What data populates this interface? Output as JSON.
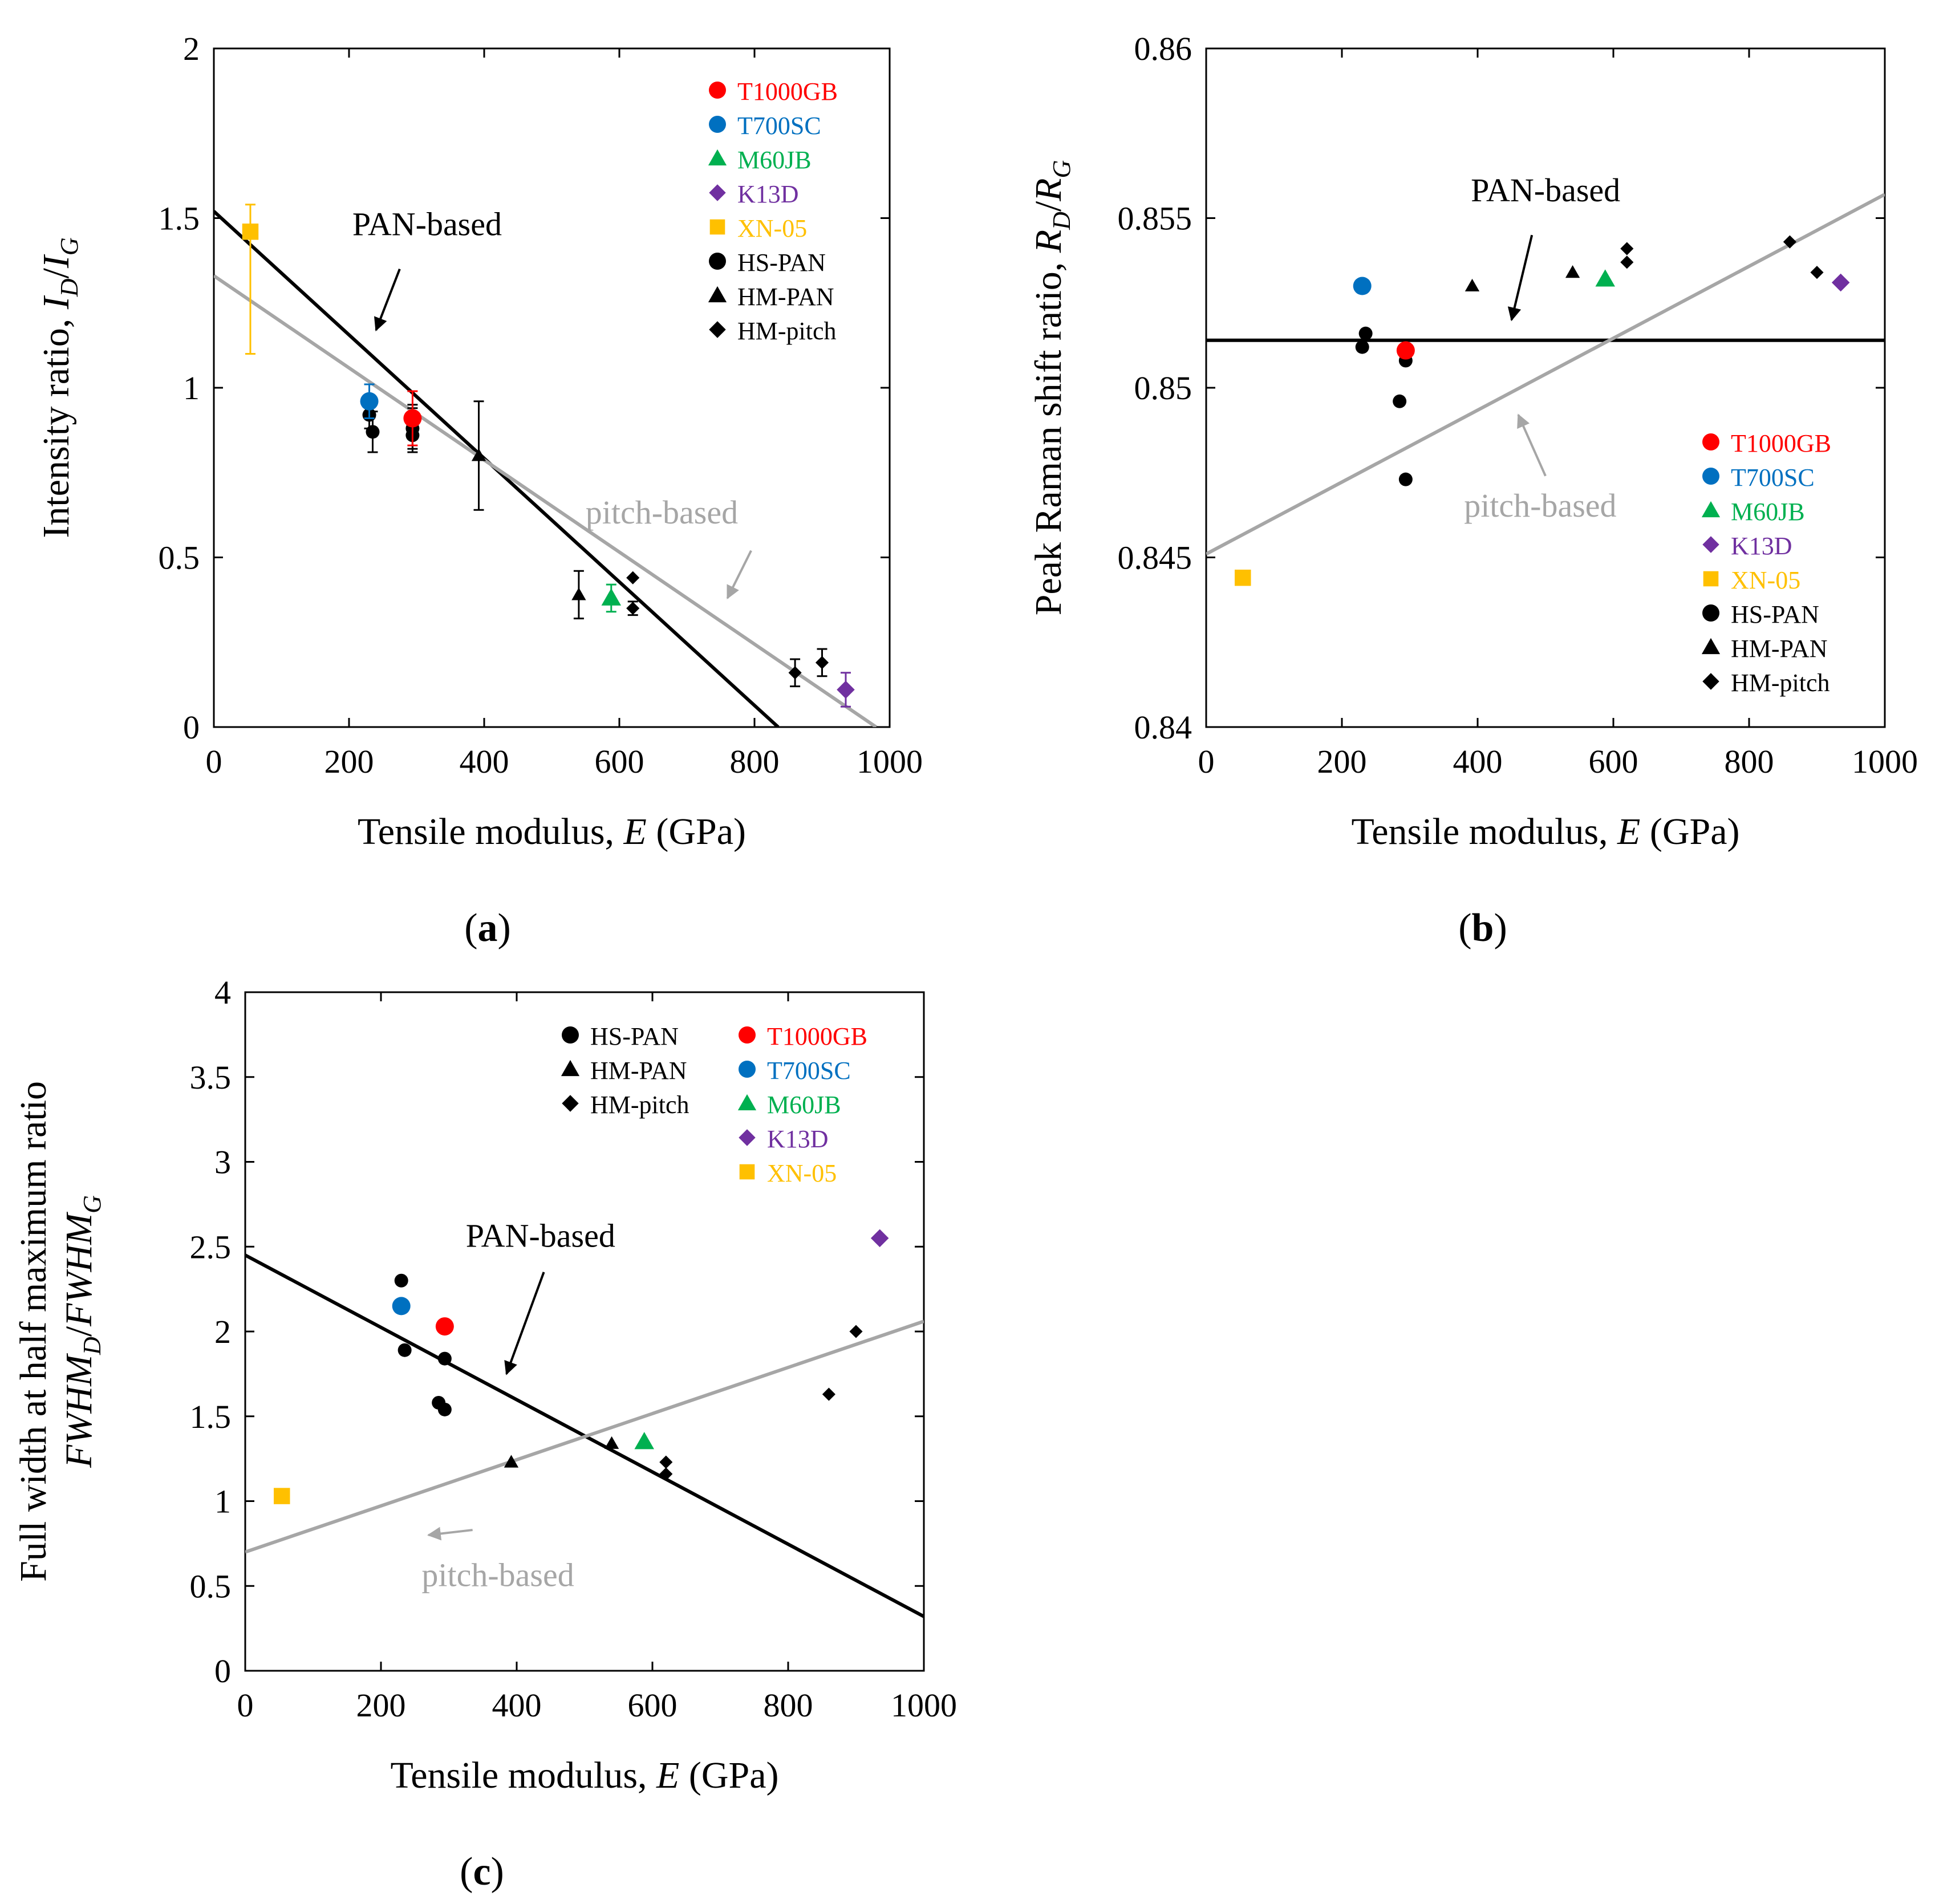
{
  "figure": {
    "colors": {
      "T1000GB": "#ff0000",
      "T700SC": "#0070c0",
      "M60JB": "#00b050",
      "K13D": "#7030a0",
      "XN-05": "#ffc000",
      "general": "#000000",
      "pan_line": "#000000",
      "pitch_line": "#a6a6a6"
    }
  },
  "chart_data": [
    {
      "panel_label": "a",
      "type": "scatter",
      "xlabel_prefix": "Tensile modulus, ",
      "xlabel_var": "E",
      "xlabel_suffix": " (GPa)",
      "ylabel_prefix": "Intensity ratio, ",
      "ylabel_var1": "I",
      "ylabel_sub1": "D",
      "ylabel_sep": "/",
      "ylabel_var2": "I",
      "ylabel_sub2": "G",
      "xlim": [
        0,
        1000
      ],
      "ylim": [
        0,
        2
      ],
      "xticks": [
        0,
        200,
        400,
        600,
        800,
        1000
      ],
      "xtick_labels": [
        "0",
        "200",
        "400",
        "600",
        "800",
        "1000"
      ],
      "yticks": [
        0,
        0.5,
        1,
        1.5,
        2
      ],
      "ytick_labels": [
        "0",
        "0.5",
        "1",
        "1.5",
        "2"
      ],
      "grid": false,
      "legend_position": "top-right",
      "legend": [
        {
          "label": "T1000GB",
          "marker": "circle",
          "color_key": "T1000GB"
        },
        {
          "label": "T700SC",
          "marker": "circle",
          "color_key": "T700SC"
        },
        {
          "label": "M60JB",
          "marker": "triangle",
          "color_key": "M60JB"
        },
        {
          "label": "K13D",
          "marker": "diamond",
          "color_key": "K13D"
        },
        {
          "label": "XN-05",
          "marker": "square",
          "color_key": "XN-05"
        },
        {
          "label": "HS-PAN",
          "marker": "circle",
          "color_key": "general"
        },
        {
          "label": "HM-PAN",
          "marker": "triangle",
          "color_key": "general"
        },
        {
          "label": "HM-pitch",
          "marker": "diamond",
          "color_key": "general"
        }
      ],
      "series": [
        {
          "name": "HS-PAN",
          "marker": "circle",
          "color_key": "general",
          "points": [
            {
              "x": 230,
              "y": 0.92,
              "err": 0.04
            },
            {
              "x": 235,
              "y": 0.87,
              "err": 0.06
            },
            {
              "x": 294,
              "y": 0.9,
              "err": 0.05
            },
            {
              "x": 294,
              "y": 0.86,
              "err": 0.05
            },
            {
              "x": 294,
              "y": 0.88,
              "err": 0.06
            }
          ]
        },
        {
          "name": "HM-PAN",
          "marker": "triangle",
          "color_key": "general",
          "points": [
            {
              "x": 392,
              "y": 0.8,
              "err": 0.16
            },
            {
              "x": 540,
              "y": 0.39,
              "err": 0.07
            }
          ]
        },
        {
          "name": "HM-pitch",
          "marker": "diamond",
          "color_key": "general",
          "points": [
            {
              "x": 620,
              "y": 0.44,
              "err": 0
            },
            {
              "x": 620,
              "y": 0.35,
              "err": 0.02
            },
            {
              "x": 860,
              "y": 0.16,
              "err": 0.04
            },
            {
              "x": 900,
              "y": 0.19,
              "err": 0.04
            }
          ]
        },
        {
          "name": "T1000GB",
          "marker": "circle",
          "color_key": "T1000GB",
          "points": [
            {
              "x": 294,
              "y": 0.91,
              "err": 0.08
            }
          ]
        },
        {
          "name": "T700SC",
          "marker": "circle",
          "color_key": "T700SC",
          "points": [
            {
              "x": 230,
              "y": 0.96,
              "err": 0.05
            }
          ]
        },
        {
          "name": "M60JB",
          "marker": "triangle",
          "color_key": "M60JB",
          "points": [
            {
              "x": 588,
              "y": 0.38,
              "err": 0.04
            }
          ]
        },
        {
          "name": "K13D",
          "marker": "diamond",
          "color_key": "K13D",
          "points": [
            {
              "x": 935,
              "y": 0.11,
              "err": 0.05
            }
          ]
        },
        {
          "name": "XN-05",
          "marker": "square",
          "color_key": "XN-05",
          "points": [
            {
              "x": 54,
              "y": 1.46,
              "err_up": 0.08,
              "err_down": 0.36
            }
          ]
        }
      ],
      "fit_lines": [
        {
          "label": "PAN-based",
          "color_key": "pan_line",
          "x0": 0,
          "y0": 1.52,
          "x1": 835,
          "y1": 0
        },
        {
          "label": "pitch-based",
          "color_key": "pitch_line",
          "x0": 0,
          "y0": 1.33,
          "x1": 980,
          "y1": 0
        }
      ],
      "annotations": [
        {
          "text": "PAN-based",
          "color_key": "pan_line",
          "tx": 205,
          "ty": 1.45,
          "ax0": 275,
          "ay0": 1.35,
          "ax1": 240,
          "ay1": 1.17
        },
        {
          "text": "pitch-based",
          "color_key": "pitch_line",
          "tx": 550,
          "ty": 0.6,
          "ax0": 795,
          "ay0": 0.52,
          "ax1": 760,
          "ay1": 0.38
        }
      ]
    },
    {
      "panel_label": "b",
      "type": "scatter",
      "xlabel_prefix": "Tensile modulus, ",
      "xlabel_var": "E",
      "xlabel_suffix": " (GPa)",
      "ylabel_prefix": "Peak Raman shift ratio, ",
      "ylabel_var1": "R",
      "ylabel_sub1": "D",
      "ylabel_sep": "/",
      "ylabel_var2": "R",
      "ylabel_sub2": "G",
      "xlim": [
        0,
        1000
      ],
      "ylim": [
        0.84,
        0.86
      ],
      "xticks": [
        0,
        200,
        400,
        600,
        800,
        1000
      ],
      "xtick_labels": [
        "0",
        "200",
        "400",
        "600",
        "800",
        "1000"
      ],
      "yticks": [
        0.84,
        0.845,
        0.85,
        0.855,
        0.86
      ],
      "ytick_labels": [
        "0.84",
        "0.845",
        "0.85",
        "0.855",
        "0.86"
      ],
      "grid": false,
      "legend_position": "bottom-right",
      "legend": [
        {
          "label": "T1000GB",
          "marker": "circle",
          "color_key": "T1000GB"
        },
        {
          "label": "T700SC",
          "marker": "circle",
          "color_key": "T700SC"
        },
        {
          "label": "M60JB",
          "marker": "triangle",
          "color_key": "M60JB"
        },
        {
          "label": "K13D",
          "marker": "diamond",
          "color_key": "K13D"
        },
        {
          "label": "XN-05",
          "marker": "square",
          "color_key": "XN-05"
        },
        {
          "label": "HS-PAN",
          "marker": "circle",
          "color_key": "general"
        },
        {
          "label": "HM-PAN",
          "marker": "triangle",
          "color_key": "general"
        },
        {
          "label": "HM-pitch",
          "marker": "diamond",
          "color_key": "general"
        }
      ],
      "series": [
        {
          "name": "HS-PAN",
          "marker": "circle",
          "color_key": "general",
          "points": [
            {
              "x": 230,
              "y": 0.8512
            },
            {
              "x": 235,
              "y": 0.8516
            },
            {
              "x": 285,
              "y": 0.8496
            },
            {
              "x": 294,
              "y": 0.8508
            },
            {
              "x": 294,
              "y": 0.8473
            }
          ]
        },
        {
          "name": "HM-PAN",
          "marker": "triangle",
          "color_key": "general",
          "points": [
            {
              "x": 392,
              "y": 0.853
            },
            {
              "x": 540,
              "y": 0.8534
            }
          ]
        },
        {
          "name": "HM-pitch",
          "marker": "diamond",
          "color_key": "general",
          "points": [
            {
              "x": 620,
              "y": 0.8537
            },
            {
              "x": 620,
              "y": 0.8541
            },
            {
              "x": 860,
              "y": 0.8543
            },
            {
              "x": 900,
              "y": 0.8534
            }
          ]
        },
        {
          "name": "T1000GB",
          "marker": "circle",
          "color_key": "T1000GB",
          "points": [
            {
              "x": 294,
              "y": 0.8511
            }
          ]
        },
        {
          "name": "T700SC",
          "marker": "circle",
          "color_key": "T700SC",
          "points": [
            {
              "x": 230,
              "y": 0.853
            }
          ]
        },
        {
          "name": "M60JB",
          "marker": "triangle",
          "color_key": "M60JB",
          "points": [
            {
              "x": 588,
              "y": 0.8532
            }
          ]
        },
        {
          "name": "K13D",
          "marker": "diamond",
          "color_key": "K13D",
          "points": [
            {
              "x": 935,
              "y": 0.8531
            }
          ]
        },
        {
          "name": "XN-05",
          "marker": "square",
          "color_key": "XN-05",
          "points": [
            {
              "x": 54,
              "y": 0.8444
            }
          ]
        }
      ],
      "fit_lines": [
        {
          "label": "PAN-based",
          "color_key": "pan_line",
          "x0": 0,
          "y0": 0.8514,
          "x1": 1000,
          "y1": 0.8514
        },
        {
          "label": "pitch-based",
          "color_key": "pitch_line",
          "x0": 0,
          "y0": 0.8451,
          "x1": 1000,
          "y1": 0.8557
        }
      ],
      "annotations": [
        {
          "text": "PAN-based",
          "color_key": "pan_line",
          "tx": 390,
          "ty": 0.8555,
          "ax0": 480,
          "ay0": 0.8545,
          "ax1": 450,
          "ay1": 0.852
        },
        {
          "text": "pitch-based",
          "color_key": "pitch_line",
          "tx": 380,
          "ty": 0.8462,
          "ax0": 500,
          "ay0": 0.8474,
          "ax1": 460,
          "ay1": 0.8492
        }
      ]
    },
    {
      "panel_label": "c",
      "type": "scatter",
      "xlabel_prefix": "Tensile modulus, ",
      "xlabel_var": "E",
      "xlabel_suffix": " (GPa)",
      "ylabel_line1": "Full width at half maximum ratio",
      "ylabel_var1": "FWHM",
      "ylabel_sub1": "D",
      "ylabel_sep": "/",
      "ylabel_var2": "FWHM",
      "ylabel_sub2": "G",
      "xlim": [
        0,
        1000
      ],
      "ylim": [
        0,
        4
      ],
      "xticks": [
        0,
        200,
        400,
        600,
        800,
        1000
      ],
      "xtick_labels": [
        "0",
        "200",
        "400",
        "600",
        "800",
        "1000"
      ],
      "yticks": [
        0,
        0.5,
        1,
        1.5,
        2,
        2.5,
        3,
        3.5,
        4
      ],
      "ytick_labels": [
        "0",
        "0.5",
        "1",
        "1.5",
        "2",
        "2.5",
        "3",
        "3.5",
        "4"
      ],
      "grid": false,
      "legend_position": "top-right",
      "legend_columns": [
        [
          {
            "label": "HS-PAN",
            "marker": "circle",
            "color_key": "general"
          },
          {
            "label": "HM-PAN",
            "marker": "triangle",
            "color_key": "general"
          },
          {
            "label": "HM-pitch",
            "marker": "diamond",
            "color_key": "general"
          }
        ],
        [
          {
            "label": "T1000GB",
            "marker": "circle",
            "color_key": "T1000GB"
          },
          {
            "label": "T700SC",
            "marker": "circle",
            "color_key": "T700SC"
          },
          {
            "label": "M60JB",
            "marker": "triangle",
            "color_key": "M60JB"
          },
          {
            "label": "K13D",
            "marker": "diamond",
            "color_key": "K13D"
          },
          {
            "label": "XN-05",
            "marker": "square",
            "color_key": "XN-05"
          }
        ]
      ],
      "series": [
        {
          "name": "HS-PAN",
          "marker": "circle",
          "color_key": "general",
          "points": [
            {
              "x": 230,
              "y": 2.3
            },
            {
              "x": 235,
              "y": 1.89
            },
            {
              "x": 285,
              "y": 1.58
            },
            {
              "x": 294,
              "y": 1.84
            },
            {
              "x": 294,
              "y": 1.54
            }
          ]
        },
        {
          "name": "HM-PAN",
          "marker": "triangle",
          "color_key": "general",
          "points": [
            {
              "x": 392,
              "y": 1.23
            },
            {
              "x": 540,
              "y": 1.34
            }
          ]
        },
        {
          "name": "HM-pitch",
          "marker": "diamond",
          "color_key": "general",
          "points": [
            {
              "x": 620,
              "y": 1.23
            },
            {
              "x": 620,
              "y": 1.16
            },
            {
              "x": 860,
              "y": 1.63
            },
            {
              "x": 900,
              "y": 2.0
            }
          ]
        },
        {
          "name": "T1000GB",
          "marker": "circle",
          "color_key": "T1000GB",
          "points": [
            {
              "x": 294,
              "y": 2.03
            }
          ]
        },
        {
          "name": "T700SC",
          "marker": "circle",
          "color_key": "T700SC",
          "points": [
            {
              "x": 230,
              "y": 2.15
            }
          ]
        },
        {
          "name": "M60JB",
          "marker": "triangle",
          "color_key": "M60JB",
          "points": [
            {
              "x": 588,
              "y": 1.35
            }
          ]
        },
        {
          "name": "K13D",
          "marker": "diamond",
          "color_key": "K13D",
          "points": [
            {
              "x": 935,
              "y": 2.55
            }
          ]
        },
        {
          "name": "XN-05",
          "marker": "square",
          "color_key": "XN-05",
          "points": [
            {
              "x": 54,
              "y": 1.03
            }
          ]
        }
      ],
      "fit_lines": [
        {
          "label": "PAN-based",
          "color_key": "pan_line",
          "x0": 0,
          "y0": 2.45,
          "x1": 1000,
          "y1": 0.32
        },
        {
          "label": "pitch-based",
          "color_key": "pitch_line",
          "x0": 0,
          "y0": 0.7,
          "x1": 1000,
          "y1": 2.06
        }
      ],
      "annotations": [
        {
          "text": "PAN-based",
          "color_key": "pan_line",
          "tx": 325,
          "ty": 2.5,
          "ax0": 440,
          "ay0": 2.35,
          "ax1": 385,
          "ay1": 1.75
        },
        {
          "text": "pitch-based",
          "color_key": "pitch_line",
          "tx": 260,
          "ty": 0.5,
          "ax0": 335,
          "ay0": 0.83,
          "ax1": 270,
          "ay1": 0.8
        }
      ]
    }
  ]
}
